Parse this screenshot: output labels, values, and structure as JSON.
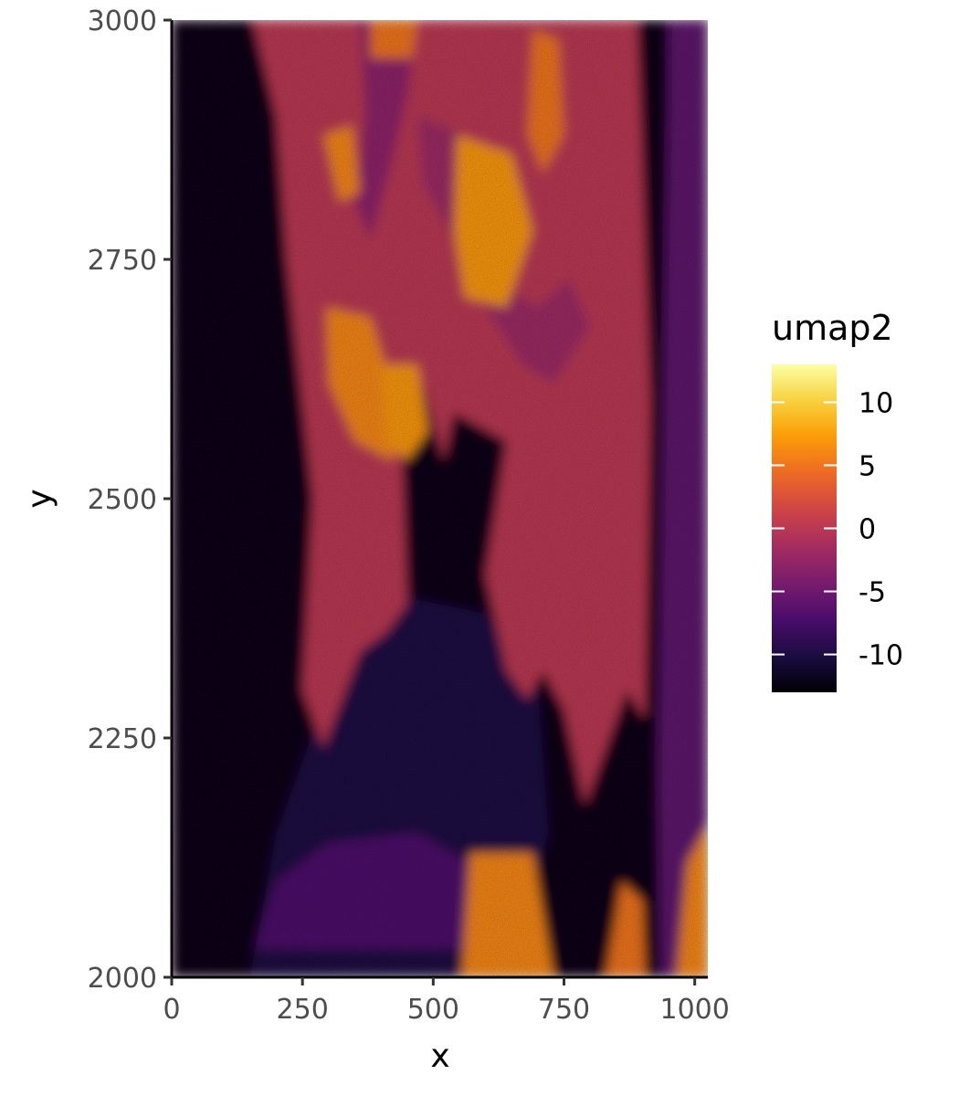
{
  "chart_data": {
    "type": "heatmap",
    "title": "",
    "xlabel": "x",
    "ylabel": "y",
    "xlim": [
      0,
      1025
    ],
    "ylim": [
      2000,
      3000
    ],
    "x_ticks": [
      0,
      250,
      500,
      750,
      1000
    ],
    "x_tick_labels": [
      "0",
      "250",
      "500",
      "750",
      "1000"
    ],
    "y_ticks": [
      2000,
      2250,
      2500,
      2750,
      3000
    ],
    "y_tick_labels": [
      "2000",
      "2250",
      "2500",
      "2750",
      "3000"
    ],
    "grid": false,
    "colorscale": "inferno",
    "colorscale_stops": [
      "#000004",
      "#1b0c41",
      "#4a0c6b",
      "#781c6d",
      "#a52c60",
      "#cf4446",
      "#ed6925",
      "#fb9b06",
      "#f7d13d",
      "#fcffa4"
    ],
    "legend": {
      "title": "umap2",
      "placement": "right",
      "min": -13,
      "max": 13,
      "ticks": [
        10,
        5,
        0,
        -5,
        -10
      ],
      "tick_labels": [
        "10",
        "5",
        "0",
        "-5",
        "-10"
      ]
    },
    "regions": [
      {
        "value": -12,
        "polygon": [
          [
            0,
            2000
          ],
          [
            1025,
            2000
          ],
          [
            1025,
            3000
          ],
          [
            0,
            3000
          ]
        ]
      },
      {
        "value": -10,
        "polygon": [
          [
            150,
            2000
          ],
          [
            640,
            2000
          ],
          [
            720,
            2150
          ],
          [
            700,
            2300
          ],
          [
            600,
            2380
          ],
          [
            420,
            2400
          ],
          [
            300,
            2300
          ],
          [
            200,
            2150
          ]
        ]
      },
      {
        "value": -7,
        "polygon": [
          [
            160,
            2030
          ],
          [
            560,
            2030
          ],
          [
            600,
            2110
          ],
          [
            470,
            2150
          ],
          [
            300,
            2140
          ],
          [
            200,
            2100
          ]
        ]
      },
      {
        "value": -6,
        "polygon": [
          [
            935,
            2000
          ],
          [
            1025,
            2000
          ],
          [
            1025,
            3000
          ],
          [
            950,
            3000
          ],
          [
            950,
            2920
          ],
          [
            940,
            2600
          ],
          [
            930,
            2220
          ]
        ]
      },
      {
        "value": 0,
        "polygon": [
          [
            155,
            3000
          ],
          [
            890,
            3000
          ],
          [
            900,
            2850
          ],
          [
            915,
            2600
          ],
          [
            905,
            2270
          ],
          [
            870,
            2300
          ],
          [
            790,
            2180
          ],
          [
            750,
            2280
          ],
          [
            710,
            2320
          ],
          [
            680,
            2290
          ],
          [
            640,
            2320
          ],
          [
            600,
            2420
          ],
          [
            640,
            2560
          ],
          [
            540,
            2590
          ],
          [
            520,
            2540
          ],
          [
            480,
            2620
          ],
          [
            440,
            2560
          ],
          [
            450,
            2390
          ],
          [
            410,
            2360
          ],
          [
            360,
            2340
          ],
          [
            290,
            2240
          ],
          [
            250,
            2300
          ],
          [
            270,
            2500
          ],
          [
            250,
            2600
          ],
          [
            220,
            2750
          ],
          [
            200,
            2900
          ]
        ]
      },
      {
        "value": -3,
        "polygon": [
          [
            360,
            3000
          ],
          [
            470,
            3000
          ],
          [
            450,
            2920
          ],
          [
            420,
            2850
          ],
          [
            380,
            2770
          ],
          [
            350,
            2810
          ],
          [
            370,
            2900
          ]
        ]
      },
      {
        "value": -2,
        "polygon": [
          [
            470,
            2900
          ],
          [
            560,
            2880
          ],
          [
            580,
            2800
          ],
          [
            640,
            2720
          ],
          [
            700,
            2700
          ],
          [
            760,
            2730
          ],
          [
            800,
            2680
          ],
          [
            730,
            2620
          ],
          [
            670,
            2640
          ],
          [
            600,
            2700
          ],
          [
            540,
            2770
          ],
          [
            480,
            2830
          ]
        ]
      },
      {
        "value": 7,
        "polygon": [
          [
            545,
            2880
          ],
          [
            650,
            2860
          ],
          [
            690,
            2780
          ],
          [
            640,
            2700
          ],
          [
            560,
            2710
          ],
          [
            540,
            2780
          ]
        ]
      },
      {
        "value": 6,
        "polygon": [
          [
            295,
            2700
          ],
          [
            380,
            2690
          ],
          [
            420,
            2620
          ],
          [
            440,
            2560
          ],
          [
            420,
            2540
          ],
          [
            350,
            2560
          ],
          [
            300,
            2620
          ]
        ]
      },
      {
        "value": 7,
        "polygon": [
          [
            400,
            2640
          ],
          [
            470,
            2640
          ],
          [
            490,
            2570
          ],
          [
            450,
            2540
          ],
          [
            410,
            2560
          ]
        ]
      },
      {
        "value": 6,
        "polygon": [
          [
            290,
            2880
          ],
          [
            345,
            2890
          ],
          [
            360,
            2820
          ],
          [
            320,
            2810
          ]
        ]
      },
      {
        "value": 5,
        "polygon": [
          [
            690,
            2990
          ],
          [
            740,
            2980
          ],
          [
            750,
            2880
          ],
          [
            710,
            2840
          ],
          [
            680,
            2880
          ]
        ]
      },
      {
        "value": 6,
        "polygon": [
          [
            570,
            2130
          ],
          [
            690,
            2130
          ],
          [
            730,
            2000
          ],
          [
            555,
            2000
          ]
        ]
      },
      {
        "value": 5,
        "polygon": [
          [
            830,
            2000
          ],
          [
            905,
            2000
          ],
          [
            900,
            2080
          ],
          [
            860,
            2100
          ]
        ]
      },
      {
        "value": 6,
        "polygon": [
          [
            965,
            2000
          ],
          [
            1025,
            2000
          ],
          [
            1025,
            2160
          ],
          [
            985,
            2120
          ]
        ]
      },
      {
        "value": 5,
        "polygon": [
          [
            380,
            2960
          ],
          [
            460,
            2960
          ],
          [
            470,
            3000
          ],
          [
            380,
            3000
          ]
        ]
      }
    ]
  }
}
